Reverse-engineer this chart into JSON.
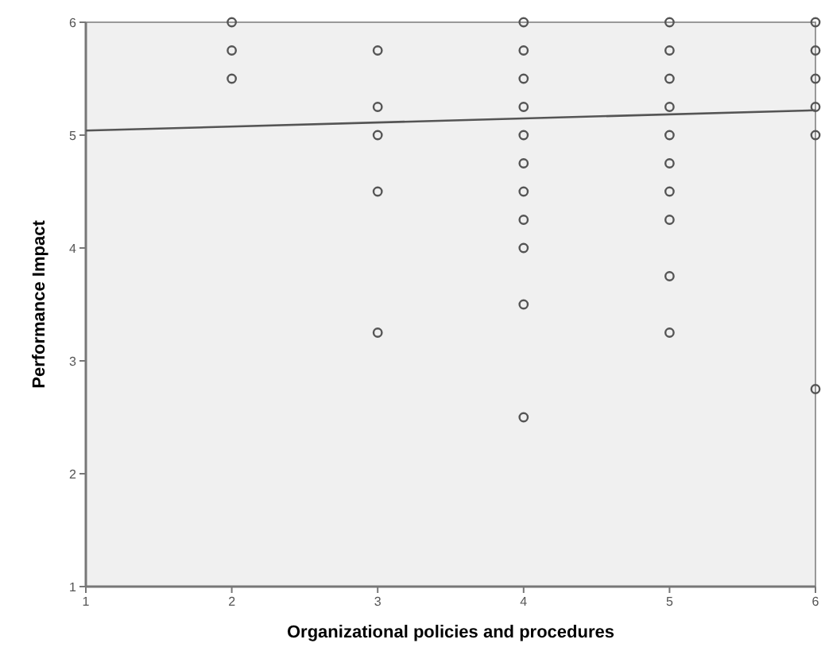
{
  "chart_data": {
    "type": "scatter",
    "xlabel": "Organizational policies and procedures",
    "ylabel": "Performance Impact",
    "xlim": [
      1,
      6
    ],
    "ylim": [
      1,
      6
    ],
    "xticks": [
      1,
      2,
      3,
      4,
      5,
      6
    ],
    "yticks": [
      1,
      2,
      3,
      4,
      5,
      6
    ],
    "grid": false,
    "series": [
      {
        "marker": "circle",
        "color": "#555555",
        "x": [
          2,
          2,
          2,
          3,
          3,
          3,
          3,
          3,
          4,
          4,
          4,
          4,
          4,
          4,
          4,
          4,
          4,
          4,
          4,
          5,
          5,
          5,
          5,
          5,
          5,
          5,
          5,
          5,
          5,
          6,
          6,
          6,
          6,
          6,
          6
        ],
        "values": [
          6,
          5.75,
          5.5,
          5.75,
          5.25,
          5,
          4.5,
          3.25,
          6,
          5.75,
          5.5,
          5.25,
          5,
          4.75,
          4.5,
          4.25,
          4,
          3.5,
          2.5,
          6,
          5.75,
          5.5,
          5.25,
          5,
          4.75,
          4.5,
          4.25,
          3.75,
          3.25,
          6,
          5.75,
          5.5,
          5.25,
          5,
          2.75
        ]
      },
      {
        "type": "line",
        "color": "#555555",
        "x": [
          1,
          6
        ],
        "values": [
          5.04,
          5.22
        ]
      }
    ]
  }
}
